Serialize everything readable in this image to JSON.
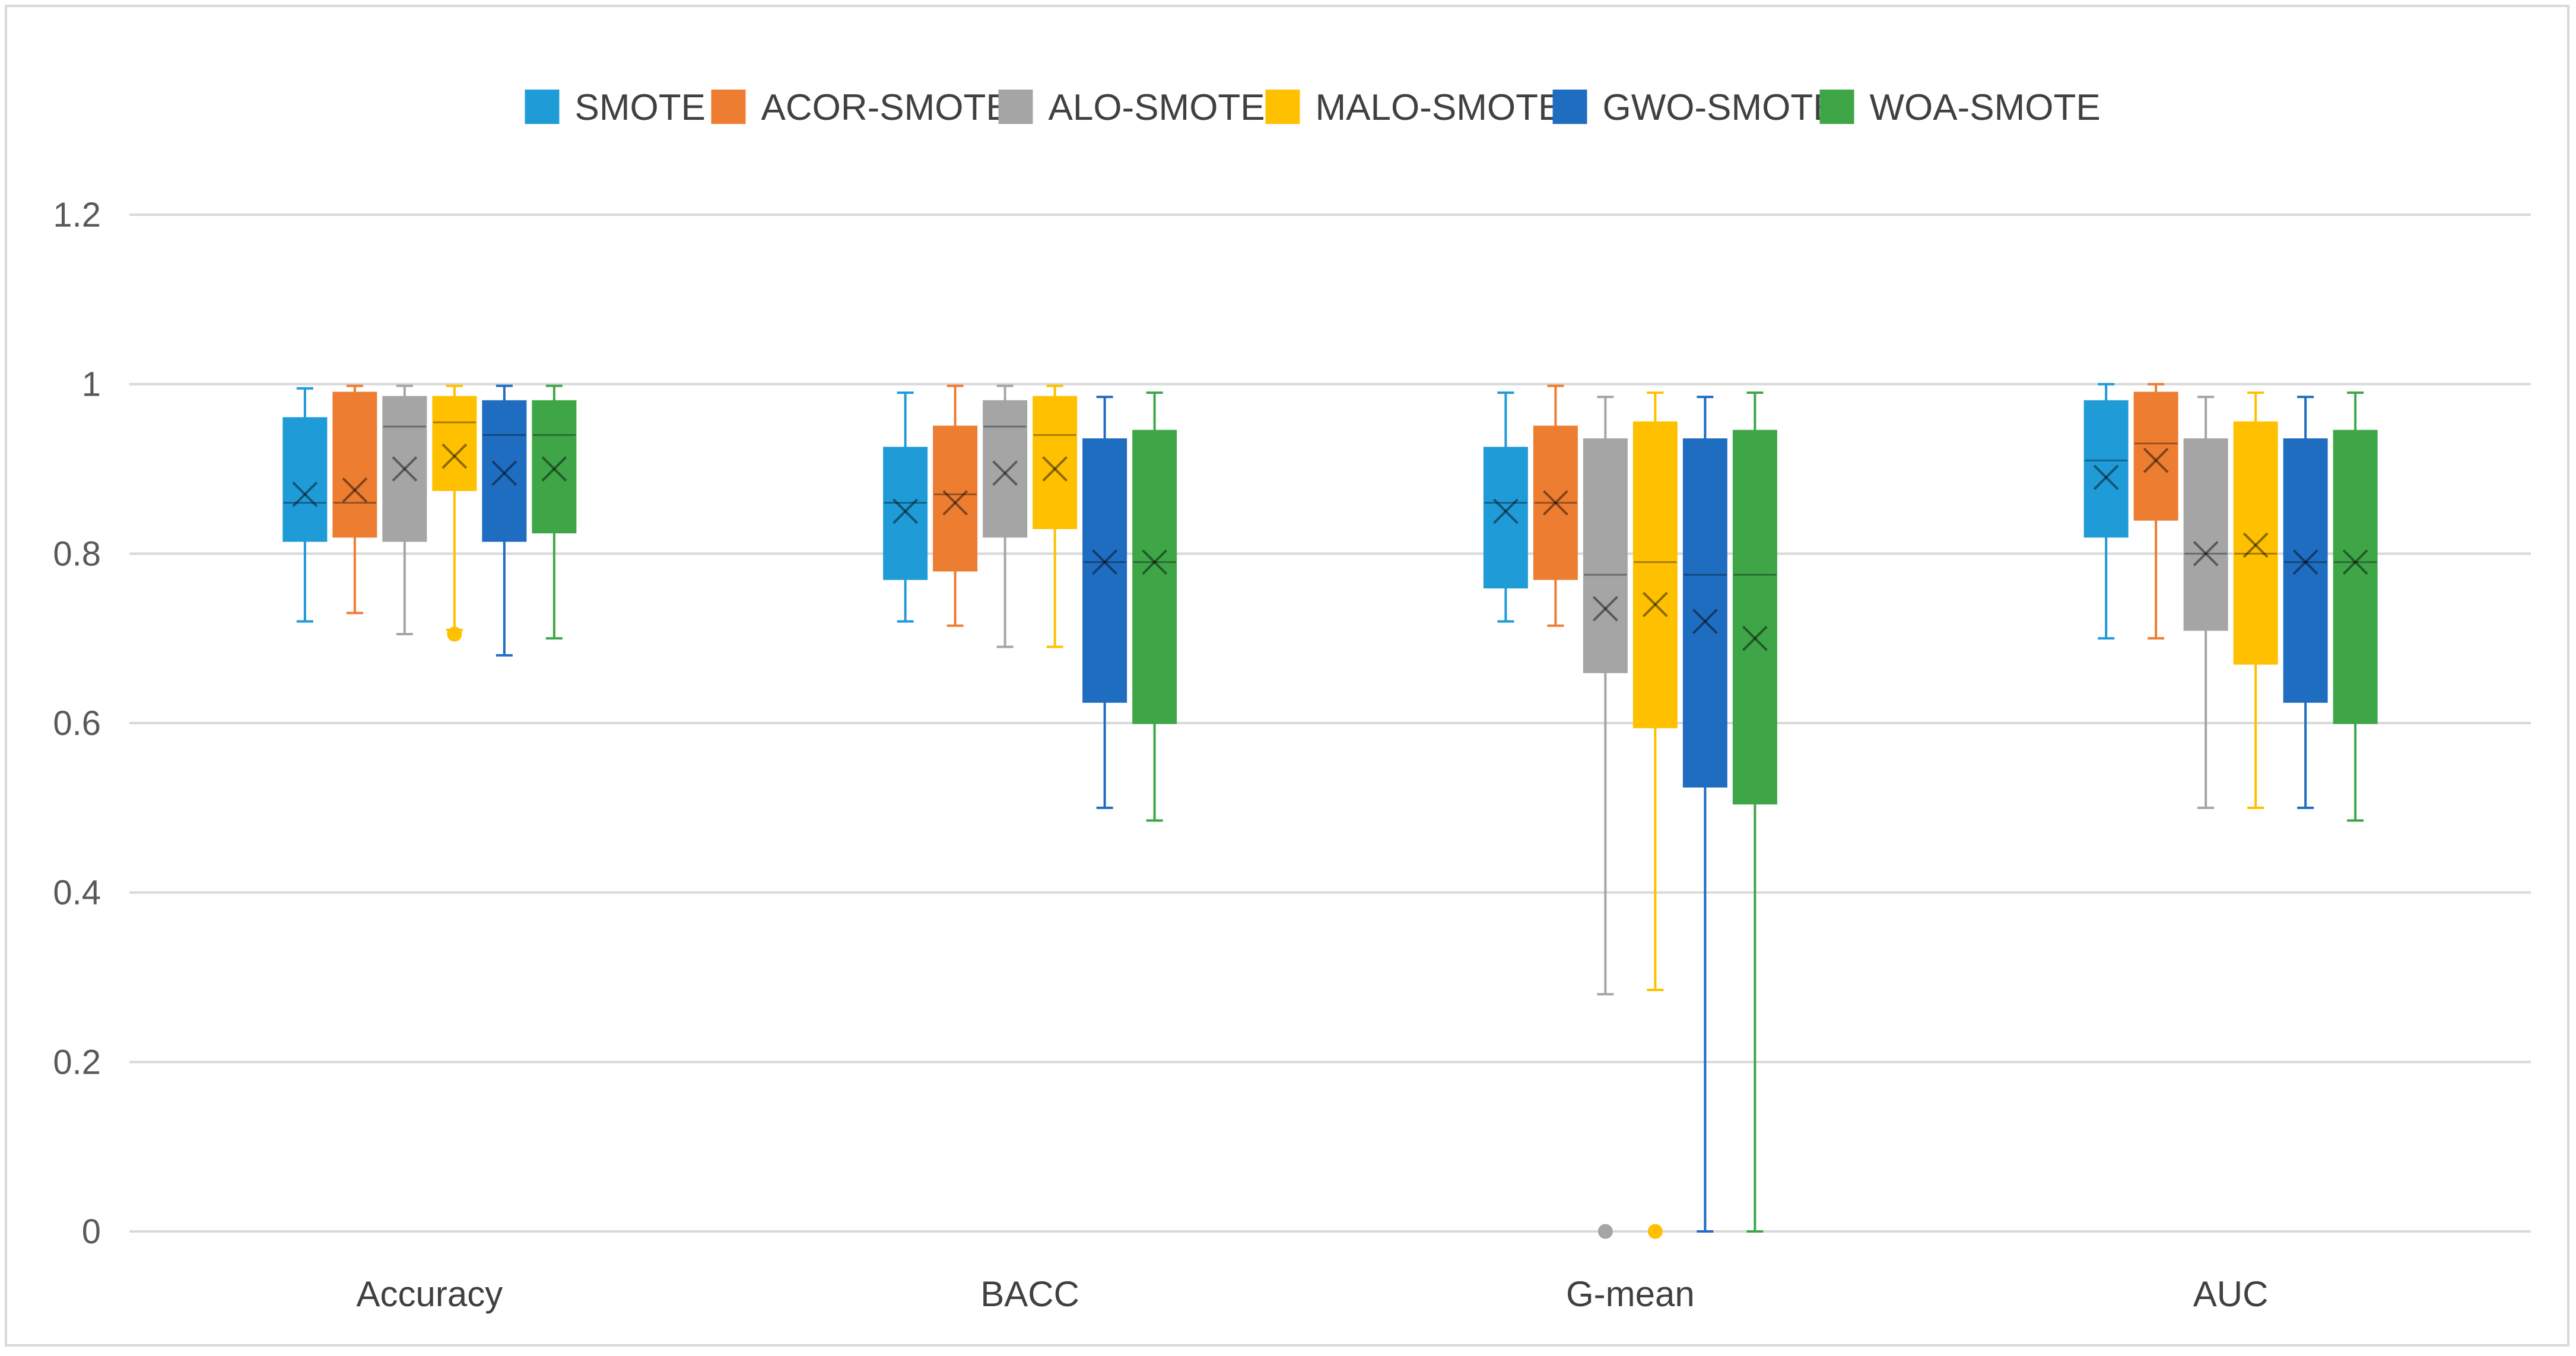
{
  "chart_data": {
    "type": "boxplot",
    "title": "",
    "xlabel": "",
    "ylabel": "",
    "ylim": [
      0,
      1.2
    ],
    "yticks": [
      0,
      0.2,
      0.4,
      0.6,
      0.8,
      1,
      1.2
    ],
    "ytick_labels": [
      "0",
      "0.2",
      "0.4",
      "0.6",
      "0.8",
      "1",
      "1.2"
    ],
    "grid": true,
    "legend_position": "top-center",
    "categories": [
      "Accuracy",
      "BACC",
      "G-mean",
      "AUC"
    ],
    "series": [
      {
        "name": "SMOTE",
        "color": "#1f9bd7",
        "boxes": [
          {
            "min": 0.72,
            "q1": 0.815,
            "median": 0.86,
            "q3": 0.96,
            "max": 0.995,
            "mean": 0.87,
            "outliers": []
          },
          {
            "min": 0.72,
            "q1": 0.77,
            "median": 0.86,
            "q3": 0.925,
            "max": 0.99,
            "mean": 0.85,
            "outliers": []
          },
          {
            "min": 0.72,
            "q1": 0.76,
            "median": 0.86,
            "q3": 0.925,
            "max": 0.99,
            "mean": 0.85,
            "outliers": []
          },
          {
            "min": 0.7,
            "q1": 0.82,
            "median": 0.91,
            "q3": 0.98,
            "max": 1.0,
            "mean": 0.89,
            "outliers": []
          }
        ]
      },
      {
        "name": "ACOR-SMOTE",
        "color": "#ed7d31",
        "boxes": [
          {
            "min": 0.73,
            "q1": 0.82,
            "median": 0.86,
            "q3": 0.99,
            "max": 0.998,
            "mean": 0.875,
            "outliers": []
          },
          {
            "min": 0.715,
            "q1": 0.78,
            "median": 0.87,
            "q3": 0.95,
            "max": 0.998,
            "mean": 0.86,
            "outliers": []
          },
          {
            "min": 0.715,
            "q1": 0.77,
            "median": 0.86,
            "q3": 0.95,
            "max": 0.998,
            "mean": 0.86,
            "outliers": []
          },
          {
            "min": 0.7,
            "q1": 0.84,
            "median": 0.93,
            "q3": 0.99,
            "max": 1.0,
            "mean": 0.91,
            "outliers": []
          }
        ]
      },
      {
        "name": "ALO-SMOTE",
        "color": "#a5a5a5",
        "boxes": [
          {
            "min": 0.705,
            "q1": 0.815,
            "median": 0.95,
            "q3": 0.985,
            "max": 0.998,
            "mean": 0.9,
            "outliers": []
          },
          {
            "min": 0.69,
            "q1": 0.82,
            "median": 0.95,
            "q3": 0.98,
            "max": 0.998,
            "mean": 0.895,
            "outliers": []
          },
          {
            "min": 0.28,
            "q1": 0.66,
            "median": 0.775,
            "q3": 0.935,
            "max": 0.985,
            "mean": 0.735,
            "outliers": [
              0
            ]
          },
          {
            "min": 0.5,
            "q1": 0.71,
            "median": 0.8,
            "q3": 0.935,
            "max": 0.985,
            "mean": 0.8,
            "outliers": []
          }
        ]
      },
      {
        "name": "MALO-SMOTE",
        "color": "#ffc000",
        "boxes": [
          {
            "min": 0.71,
            "q1": 0.875,
            "median": 0.955,
            "q3": 0.985,
            "max": 0.998,
            "mean": 0.915,
            "outliers": [
              0.705
            ]
          },
          {
            "min": 0.69,
            "q1": 0.83,
            "median": 0.94,
            "q3": 0.985,
            "max": 0.998,
            "mean": 0.9,
            "outliers": []
          },
          {
            "min": 0.285,
            "q1": 0.595,
            "median": 0.79,
            "q3": 0.955,
            "max": 0.99,
            "mean": 0.74,
            "outliers": [
              0
            ]
          },
          {
            "min": 0.5,
            "q1": 0.67,
            "median": 0.8,
            "q3": 0.955,
            "max": 0.99,
            "mean": 0.81,
            "outliers": []
          }
        ]
      },
      {
        "name": "GWO-SMOTE",
        "color": "#1f6dc1",
        "boxes": [
          {
            "min": 0.68,
            "q1": 0.815,
            "median": 0.94,
            "q3": 0.98,
            "max": 0.998,
            "mean": 0.895,
            "outliers": []
          },
          {
            "min": 0.5,
            "q1": 0.625,
            "median": 0.79,
            "q3": 0.935,
            "max": 0.985,
            "mean": 0.79,
            "outliers": []
          },
          {
            "min": 0.0,
            "q1": 0.525,
            "median": 0.775,
            "q3": 0.935,
            "max": 0.985,
            "mean": 0.72,
            "outliers": []
          },
          {
            "min": 0.5,
            "q1": 0.625,
            "median": 0.79,
            "q3": 0.935,
            "max": 0.985,
            "mean": 0.79,
            "outliers": []
          }
        ]
      },
      {
        "name": "WOA-SMOTE",
        "color": "#3fa648",
        "boxes": [
          {
            "min": 0.7,
            "q1": 0.825,
            "median": 0.94,
            "q3": 0.98,
            "max": 0.998,
            "mean": 0.9,
            "outliers": []
          },
          {
            "min": 0.485,
            "q1": 0.6,
            "median": 0.79,
            "q3": 0.945,
            "max": 0.99,
            "mean": 0.79,
            "outliers": []
          },
          {
            "min": 0.0,
            "q1": 0.505,
            "median": 0.775,
            "q3": 0.945,
            "max": 0.99,
            "mean": 0.7,
            "outliers": []
          },
          {
            "min": 0.485,
            "q1": 0.6,
            "median": 0.79,
            "q3": 0.945,
            "max": 0.99,
            "mean": 0.79,
            "outliers": []
          }
        ]
      }
    ]
  }
}
